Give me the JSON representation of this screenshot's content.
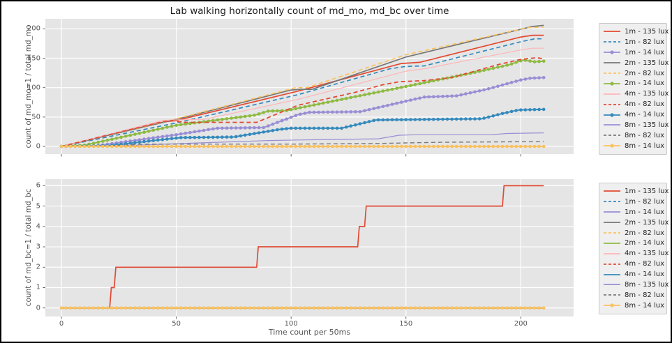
{
  "title": "Lab walking horizontally count of md_mo, md_bc over time",
  "figure": {
    "background": "#FFFFFF",
    "border_color": "#000000",
    "plot_background": "#E5E5E5",
    "grid_color": "#FFFFFF",
    "tick_color": "#555555",
    "text_color": "#1A1A1A",
    "label_color": "#555555",
    "legend_background": "#EFEFEF",
    "legend_border": "#C9C9C9"
  },
  "chart_data": [
    {
      "type": "line",
      "title": "",
      "xlabel": "",
      "ylabel": "count of md_mo=1 / total md_mo",
      "xlim": [
        -7,
        223
      ],
      "ylim": [
        -13,
        217
      ],
      "xticks": [
        0,
        50,
        100,
        150,
        200
      ],
      "yticks": [
        0,
        50,
        100,
        150,
        200
      ],
      "x_tick_labels_visible": false,
      "grid": true,
      "legend_position": "outside-right",
      "series": [
        {
          "name": "1m - 135 lux",
          "color": "#E24A33",
          "dash": false,
          "marker": false,
          "width": 1.7,
          "points": [
            [
              0,
              0
            ],
            [
              45,
              42
            ],
            [
              50,
              44
            ],
            [
              103,
              94
            ],
            [
              148,
              141
            ],
            [
              156,
              143
            ],
            [
              200,
              186
            ],
            [
              205,
              189
            ],
            [
              210,
              189
            ]
          ]
        },
        {
          "name": "1m - 82 lux",
          "color": "#348ABD",
          "dash": true,
          "marker": false,
          "width": 1.7,
          "points": [
            [
              0,
              0
            ],
            [
              50,
              40
            ],
            [
              103,
              88
            ],
            [
              143,
              132
            ],
            [
              150,
              136
            ],
            [
              158,
              137
            ],
            [
              200,
              178
            ],
            [
              206,
              183
            ],
            [
              210,
              183
            ]
          ]
        },
        {
          "name": "1m - 14 lux",
          "color": "#988ED5",
          "dash": false,
          "marker": true,
          "width": 2,
          "points": [
            [
              0,
              0
            ],
            [
              15,
              1
            ],
            [
              50,
              20
            ],
            [
              68,
              31
            ],
            [
              88,
              32
            ],
            [
              103,
              54
            ],
            [
              108,
              58
            ],
            [
              130,
              59
            ],
            [
              150,
              77
            ],
            [
              158,
              84
            ],
            [
              172,
              86
            ],
            [
              185,
              97
            ],
            [
              200,
              113
            ],
            [
              204,
              116
            ],
            [
              210,
              117
            ]
          ]
        },
        {
          "name": "2m - 135 lux",
          "color": "#777777",
          "dash": false,
          "marker": false,
          "width": 1.7,
          "points": [
            [
              0,
              0
            ],
            [
              50,
              46
            ],
            [
              100,
              96
            ],
            [
              104,
              97
            ],
            [
              109,
              97
            ],
            [
              150,
              152
            ],
            [
              205,
              204
            ],
            [
              210,
              206
            ]
          ]
        },
        {
          "name": "2m - 82 lux",
          "color": "#FBC15E",
          "dash": true,
          "marker": false,
          "width": 1.7,
          "points": [
            [
              0,
              0
            ],
            [
              50,
              47
            ],
            [
              102,
              100
            ],
            [
              107,
              100
            ],
            [
              150,
              156
            ],
            [
              203,
              202
            ],
            [
              210,
              203
            ]
          ]
        },
        {
          "name": "2m - 14 lux",
          "color": "#8EBA42",
          "dash": false,
          "marker": true,
          "width": 2,
          "points": [
            [
              0,
              0
            ],
            [
              10,
              2
            ],
            [
              50,
              36
            ],
            [
              84,
              53
            ],
            [
              90,
              60
            ],
            [
              98,
              61
            ],
            [
              103,
              65
            ],
            [
              150,
              102
            ],
            [
              180,
              126
            ],
            [
              195,
              139
            ],
            [
              201,
              147
            ],
            [
              206,
              144
            ],
            [
              210,
              145
            ]
          ]
        },
        {
          "name": "4m - 135 lux",
          "color": "#FFB5B8",
          "dash": false,
          "marker": false,
          "width": 1.2,
          "points": [
            [
              0,
              0
            ],
            [
              44,
              44
            ],
            [
              48,
              45
            ],
            [
              62,
              46
            ],
            [
              103,
              80
            ],
            [
              150,
              128
            ],
            [
              158,
              132
            ],
            [
              175,
              145
            ],
            [
              200,
              164
            ],
            [
              205,
              167
            ],
            [
              210,
              167
            ]
          ]
        },
        {
          "name": "4m - 82 lux",
          "color": "#E24A33",
          "dash": true,
          "marker": false,
          "width": 1.8,
          "points": [
            [
              0,
              0
            ],
            [
              44,
              42
            ],
            [
              48,
              44
            ],
            [
              53,
              41
            ],
            [
              85,
              41
            ],
            [
              103,
              70
            ],
            [
              128,
              92
            ],
            [
              140,
              105
            ],
            [
              147,
              110
            ],
            [
              158,
              112
            ],
            [
              170,
              117
            ],
            [
              190,
              139
            ],
            [
              200,
              148
            ],
            [
              207,
              151
            ],
            [
              210,
              149
            ]
          ]
        },
        {
          "name": "4m - 14 lux",
          "color": "#348ABD",
          "dash": false,
          "marker": true,
          "width": 2,
          "points": [
            [
              0,
              0
            ],
            [
              20,
              1
            ],
            [
              40,
              10
            ],
            [
              52,
              15
            ],
            [
              75,
              16
            ],
            [
              95,
              29
            ],
            [
              100,
              31
            ],
            [
              122,
              31
            ],
            [
              137,
              45
            ],
            [
              160,
              46
            ],
            [
              183,
              47
            ],
            [
              192,
              56
            ],
            [
              199,
              62
            ],
            [
              210,
              63
            ]
          ]
        },
        {
          "name": "8m - 135 lux",
          "color": "#988ED5",
          "dash": false,
          "marker": false,
          "width": 1.2,
          "points": [
            [
              0,
              0
            ],
            [
              25,
              1
            ],
            [
              60,
              6
            ],
            [
              90,
              10
            ],
            [
              103,
              11
            ],
            [
              138,
              13
            ],
            [
              147,
              19
            ],
            [
              155,
              20
            ],
            [
              187,
              20
            ],
            [
              194,
              22
            ],
            [
              210,
              23
            ]
          ]
        },
        {
          "name": "8m - 82 lux",
          "color": "#777777",
          "dash": true,
          "marker": false,
          "width": 1.4,
          "points": [
            [
              0,
              0
            ],
            [
              18,
              0
            ],
            [
              35,
              4
            ],
            [
              100,
              4
            ],
            [
              138,
              5
            ],
            [
              150,
              6
            ],
            [
              165,
              7
            ],
            [
              200,
              8
            ],
            [
              210,
              8
            ]
          ]
        },
        {
          "name": "8m - 14 lux",
          "color": "#FBC15E",
          "dash": false,
          "marker": true,
          "width": 2,
          "points": [
            [
              0,
              0
            ],
            [
              210,
              0
            ]
          ]
        }
      ]
    },
    {
      "type": "line",
      "title": "",
      "xlabel": "Time count per 50ms",
      "ylabel": "count of md_bc=1 / total md_bc",
      "xlim": [
        -7,
        223
      ],
      "ylim": [
        -0.42,
        6.32
      ],
      "xticks": [
        0,
        50,
        100,
        150,
        200
      ],
      "yticks": [
        0,
        1,
        2,
        3,
        4,
        5,
        6
      ],
      "x_tick_labels_visible": true,
      "grid": true,
      "legend_position": "outside-right",
      "series": [
        {
          "name": "1m - 135 lux",
          "color": "#E24A33",
          "dash": false,
          "marker": false,
          "width": 1.7,
          "points": [
            [
              0,
              0
            ],
            [
              21,
              0
            ],
            [
              21.7,
              1
            ],
            [
              23,
              1
            ],
            [
              23.7,
              2
            ],
            [
              85,
              2
            ],
            [
              85.7,
              3
            ],
            [
              129,
              3
            ],
            [
              129.7,
              4
            ],
            [
              132,
              4
            ],
            [
              132.7,
              5
            ],
            [
              192,
              5
            ],
            [
              192.7,
              6
            ],
            [
              210,
              6
            ]
          ]
        },
        {
          "name": "1m - 82 lux",
          "color": "#348ABD",
          "dash": true,
          "marker": false,
          "width": 1.7,
          "points": [
            [
              0,
              0
            ],
            [
              210,
              0
            ]
          ]
        },
        {
          "name": "1m - 14 lux",
          "color": "#988ED5",
          "dash": false,
          "marker": false,
          "width": 2,
          "points": [
            [
              0,
              0
            ],
            [
              210,
              0
            ]
          ]
        },
        {
          "name": "2m - 135 lux",
          "color": "#777777",
          "dash": false,
          "marker": false,
          "width": 1.7,
          "points": [
            [
              0,
              0
            ],
            [
              210,
              0
            ]
          ]
        },
        {
          "name": "2m - 82 lux",
          "color": "#FBC15E",
          "dash": true,
          "marker": false,
          "width": 1.7,
          "points": [
            [
              0,
              0
            ],
            [
              210,
              0
            ]
          ]
        },
        {
          "name": "2m - 14 lux",
          "color": "#8EBA42",
          "dash": false,
          "marker": false,
          "width": 2,
          "points": [
            [
              0,
              0
            ],
            [
              210,
              0
            ]
          ]
        },
        {
          "name": "4m - 135 lux",
          "color": "#FFB5B8",
          "dash": false,
          "marker": false,
          "width": 1.2,
          "points": [
            [
              0,
              0
            ],
            [
              210,
              0
            ]
          ]
        },
        {
          "name": "4m - 82 lux",
          "color": "#E24A33",
          "dash": true,
          "marker": false,
          "width": 1.8,
          "points": [
            [
              0,
              0
            ],
            [
              210,
              0
            ]
          ]
        },
        {
          "name": "4m - 14 lux",
          "color": "#348ABD",
          "dash": false,
          "marker": false,
          "width": 2,
          "points": [
            [
              0,
              0
            ],
            [
              210,
              0
            ]
          ]
        },
        {
          "name": "8m - 135 lux",
          "color": "#988ED5",
          "dash": false,
          "marker": false,
          "width": 1.2,
          "points": [
            [
              0,
              0
            ],
            [
              210,
              0
            ]
          ]
        },
        {
          "name": "8m - 82 lux",
          "color": "#777777",
          "dash": true,
          "marker": false,
          "width": 1.4,
          "points": [
            [
              0,
              0
            ],
            [
              210,
              0
            ]
          ]
        },
        {
          "name": "8m - 14 lux",
          "color": "#FBC15E",
          "dash": false,
          "marker": true,
          "width": 2,
          "points": [
            [
              0,
              0
            ],
            [
              210,
              0
            ]
          ]
        }
      ]
    }
  ]
}
